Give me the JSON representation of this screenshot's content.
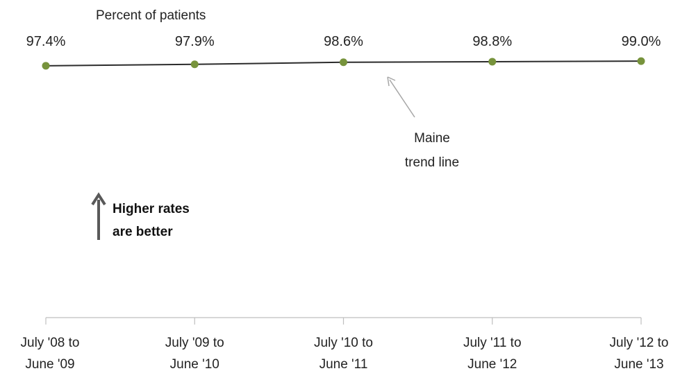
{
  "chart_data": {
    "type": "line",
    "categories": [
      [
        "July '08 to",
        "June '09"
      ],
      [
        "July '09 to",
        "June '10"
      ],
      [
        "July '10 to",
        "June '11"
      ],
      [
        "July '11 to",
        "June '12"
      ],
      [
        "July '12 to",
        "June '13"
      ]
    ],
    "series": [
      {
        "name": "Maine trend line",
        "values": [
          97.4,
          97.9,
          98.6,
          98.8,
          99.0
        ],
        "value_labels": [
          "97.4%",
          "97.9%",
          "98.6%",
          "98.8%",
          "99.0%"
        ]
      }
    ],
    "ylabel": "Percent of patients",
    "ylim": [
      0,
      100
    ],
    "grid": false,
    "colors": {
      "marker": "#77933c",
      "line": "#2b2b2b",
      "axis": "#bfbfbf",
      "arrow": "#595959",
      "pointer": "#a6a6a6"
    }
  },
  "annotations": {
    "trend": [
      "Maine",
      "trend line"
    ],
    "higher": [
      "Higher rates",
      "are better"
    ]
  }
}
